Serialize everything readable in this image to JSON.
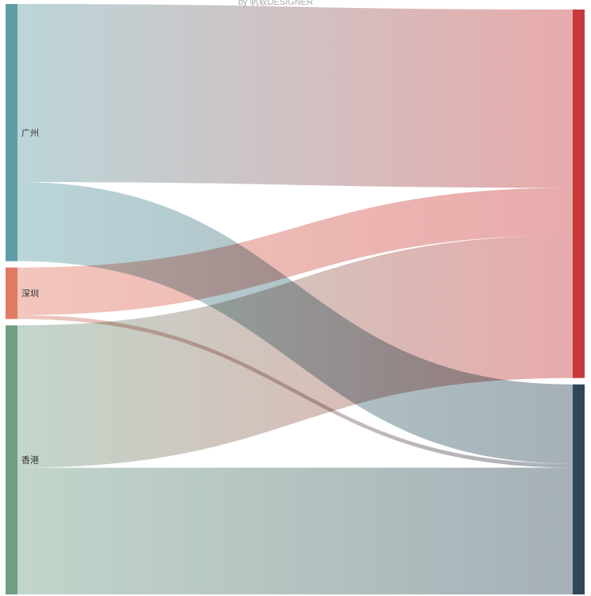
{
  "subtitle": "by 帆软DESIGNER",
  "chart_data": {
    "type": "sankey",
    "title": "",
    "nodes": [
      {
        "name": "广州",
        "side": "left",
        "color": "#5f9ea6"
      },
      {
        "name": "深圳",
        "side": "left",
        "color": "#e07a63"
      },
      {
        "name": "香港",
        "side": "left",
        "color": "#6f9e83"
      },
      {
        "name": "",
        "side": "right",
        "color": "#c83a3a"
      },
      {
        "name": "",
        "side": "right",
        "color": "#2f4858"
      }
    ],
    "links": [
      {
        "source": 0,
        "target": 3,
        "value": 225
      },
      {
        "source": 0,
        "target": 4,
        "value": 100
      },
      {
        "source": 1,
        "target": 3,
        "value": 60
      },
      {
        "source": 1,
        "target": 4,
        "value": 5
      },
      {
        "source": 2,
        "target": 3,
        "value": 180
      },
      {
        "source": 2,
        "target": 4,
        "value": 160
      }
    ]
  }
}
